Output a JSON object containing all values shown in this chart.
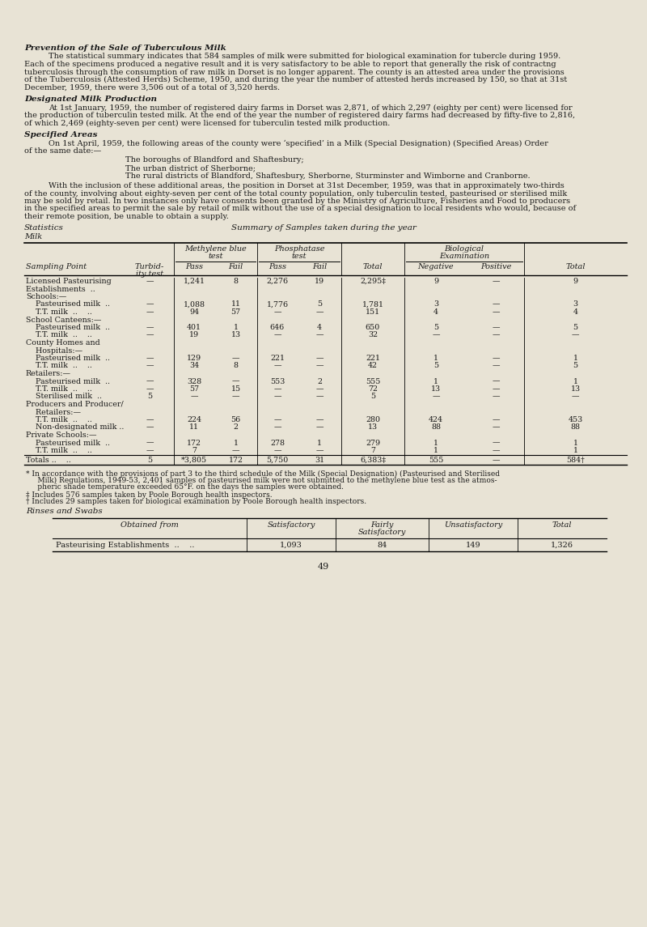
{
  "bg_color": "#e8e3d5",
  "text_color": "#1a1a1a",
  "title1": "Prevention of the Sale of Tuberculous Milk",
  "para1_line1": "The statistical summary indicates that 584 samples of milk were submitted for biological examination for tubercle during 1959.",
  "para1_line2": "Each of the specimens produced a negative result and it is very satisfactory to be able to report that generally the risk of contractng",
  "para1_line3": "tuberculosis through the consumption of raw milk in Dorset is no longer apparent. The county is an attested area under the provisions",
  "para1_line4": "of the Tuberculosis (Attested Herds) Scheme, 1950, and during the year the number of attested herds increased by 150, so that at 31st",
  "para1_line5": "December, 1959, there were 3,506 out of a total of 3,520 herds.",
  "title2": "Designated Milk Production",
  "para2_line1": "At 1st January, 1959, the number of registered dairy farms in Dorset was 2,871, of which 2,297 (eighty per cent) were licensed for",
  "para2_line2": "the production of tuberculin tested milk. At the end of the year the number of registered dairy farms had decreased by fifty-five to 2,816,",
  "para2_line3": "of which 2,469 (eighty-seven per cent) were licensed for tuberculin tested milk production.",
  "title3": "Specified Areas",
  "para3a_line1": "On 1st April, 1959, the following areas of the county were ‘specified’ in a Milk (Special Designation) (Specified Areas) Order",
  "para3a_line2": "of the same date:—",
  "para3b1": "The boroughs of Blandford and Shaftesbury;",
  "para3b2": "The urban district of Sherborne;",
  "para3b3": "The rural districts of Blandford, Shaftesbury, Sherborne, Sturminster and Wimborne and Cranborne.",
  "para3c_line1": "With the inclusion of these additional areas, the position in Dorset at 31st December, 1959, was that in approximately two-thirds",
  "para3c_line2": "of the county, involving about eighty-seven per cent of the total county population, only tuberculin tested, pasteurised or sterilised milk",
  "para3c_line3": "may be sold by retail. In two instances only have consents been granted by the Ministry of Agriculture, Fisheries and Food to producers",
  "para3c_line4": "in the specified areas to permit the sale by retail of milk without the use of a special designation to local residents who would, because of",
  "para3c_line5": "their remote position, be unable to obtain a supply.",
  "stats_label": "Statistics",
  "table_title": "Summary of Samples taken during the year",
  "milk_label": "Milk",
  "fn1_line1": "* In accordance with the provisions of part 3 to the third schedule of the Milk (Special Designation) (Pasteurised and Sterilised",
  "fn1_line2": "     Milk) Regulations, 1949-53, 2,401 samples of pasteurised milk were not submitted to the methylene blue test as the atmos-",
  "fn1_line3": "     pheric shade temperature exceeded 65°F. on the days the samples were obtained.",
  "footnote2": "‡ Includes 576 samples taken by Poole Borough health inspectors.",
  "footnote3": "† Includes 29 samples taken for biological examination by Poole Borough health inspectors.",
  "rinses_title": "Rinses and Swabs",
  "page_num": "49",
  "table_data": [
    [
      "Licensed Pasteurising",
      "—",
      "1,241",
      "8",
      "2,276",
      "19",
      "2,295‡",
      "9",
      "—",
      "9"
    ],
    [
      "Establishments  ..",
      "",
      "",
      "",
      "",
      "",
      "",
      "",
      "",
      ""
    ],
    [
      "Schools:—",
      "",
      "",
      "",
      "",
      "",
      "",
      "",
      "",
      ""
    ],
    [
      "    Pasteurised milk  ..",
      "—",
      "1,088",
      "11",
      "1,776",
      "5",
      "1,781",
      "3",
      "—",
      "3"
    ],
    [
      "    T.T. milk  ..    ..",
      "—",
      "94",
      "57",
      "—",
      "—",
      "151",
      "4",
      "—",
      "4"
    ],
    [
      "School Canteens:—",
      "",
      "",
      "",
      "",
      "",
      "",
      "",
      "",
      ""
    ],
    [
      "    Pasteurised milk  ..",
      "—",
      "401",
      "1",
      "646",
      "4",
      "650",
      "5",
      "—",
      "5"
    ],
    [
      "    T.T. milk  ..    ..",
      "—",
      "19",
      "13",
      "—",
      "—",
      "32",
      "—",
      "—",
      "—"
    ],
    [
      "County Homes and",
      "",
      "",
      "",
      "",
      "",
      "",
      "",
      "",
      ""
    ],
    [
      "    Hospitals:—",
      "",
      "",
      "",
      "",
      "",
      "",
      "",
      "",
      ""
    ],
    [
      "    Pasteurised milk  ..",
      "—",
      "129",
      "—",
      "221",
      "—",
      "221",
      "1",
      "—",
      "1"
    ],
    [
      "    T.T. milk  ..    ..",
      "—",
      "34",
      "8",
      "—",
      "—",
      "42",
      "5",
      "—",
      "5"
    ],
    [
      "Retailers:—",
      "",
      "",
      "",
      "",
      "",
      "",
      "",
      "",
      ""
    ],
    [
      "    Pasteurised milk  ..",
      "—",
      "328",
      "—",
      "553",
      "2",
      "555",
      "1",
      "—",
      "1"
    ],
    [
      "    T.T. milk  ..    ..",
      "—",
      "57",
      "15",
      "—",
      "—",
      "72",
      "13",
      "—",
      "13"
    ],
    [
      "    Sterilised milk  ..",
      "5",
      "—",
      "—",
      "—",
      "—",
      "5",
      "—",
      "—",
      "—"
    ],
    [
      "Producers and Producer/",
      "",
      "",
      "",
      "",
      "",
      "",
      "",
      "",
      ""
    ],
    [
      "    Retailers:—",
      "",
      "",
      "",
      "",
      "",
      "",
      "",
      "",
      ""
    ],
    [
      "    T.T. milk  ..    ..",
      "—",
      "224",
      "56",
      "—",
      "—",
      "280",
      "424",
      "—",
      "453"
    ],
    [
      "    Non-designated milk ..",
      "—",
      "11",
      "2",
      "—",
      "—",
      "13",
      "88",
      "—",
      "88"
    ],
    [
      "Private Schools:—",
      "",
      "",
      "",
      "",
      "",
      "",
      "",
      "",
      ""
    ],
    [
      "    Pasteurised milk  ..",
      "—",
      "172",
      "1",
      "278",
      "1",
      "279",
      "1",
      "—",
      "1"
    ],
    [
      "    T.T. milk  ..    ..",
      "—",
      "7",
      "—",
      "—",
      "—",
      "7",
      "1",
      "—",
      "1"
    ]
  ],
  "totals_row": [
    "Totals ..    ..",
    "5",
    "*3,805",
    "172",
    "5,750",
    "31",
    "6,383‡",
    "555",
    "—",
    "584†"
  ],
  "header_only_rows": [
    2,
    5,
    8,
    9,
    12,
    16,
    17,
    20
  ],
  "establishments_row": 1,
  "rinses_headers": [
    "Obtained from",
    "Satisfactory",
    "Fairly\nSatisfactory",
    "Unsatisfactory",
    "Total"
  ],
  "rinses_data": [
    [
      "Pasteurising Establishments  ..    ..",
      "1,093",
      "84",
      "149",
      "1,326"
    ]
  ]
}
